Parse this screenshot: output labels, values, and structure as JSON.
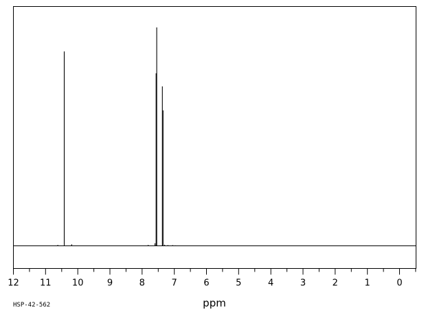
{
  "chart_data": {
    "type": "line",
    "spectrum_id": "HSP-42-562",
    "xlabel": "ppm",
    "ylabel": "",
    "title": "",
    "x_reversed": true,
    "xlim": [
      12,
      -0.5
    ],
    "ylim": [
      0,
      1
    ],
    "grid": false,
    "legend": "none",
    "tick_labels": [
      "12",
      "11",
      "10",
      "9",
      "8",
      "7",
      "6",
      "5",
      "4",
      "3",
      "2",
      "1",
      "0"
    ],
    "tick_values": [
      12,
      11,
      10,
      9,
      8,
      7,
      6,
      5,
      4,
      3,
      2,
      1,
      0
    ],
    "baseline": 0.0,
    "peaks": [
      {
        "ppm": 10.42,
        "intensity": 0.89
      },
      {
        "ppm": 10.62,
        "intensity": 0.004
      },
      {
        "ppm": 10.19,
        "intensity": 0.007
      },
      {
        "ppm": 7.81,
        "intensity": 0.004
      },
      {
        "ppm": 7.6,
        "intensity": 0.012
      },
      {
        "ppm": 7.565,
        "intensity": 0.79
      },
      {
        "ppm": 7.545,
        "intensity": 1.0
      },
      {
        "ppm": 7.37,
        "intensity": 0.73
      },
      {
        "ppm": 7.35,
        "intensity": 0.62
      },
      {
        "ppm": 7.3,
        "intensity": 0.005
      },
      {
        "ppm": 7.2,
        "intensity": 0.003
      },
      {
        "ppm": 7.05,
        "intensity": 0.003
      },
      {
        "ppm": 6.97,
        "intensity": 0.002
      }
    ]
  }
}
